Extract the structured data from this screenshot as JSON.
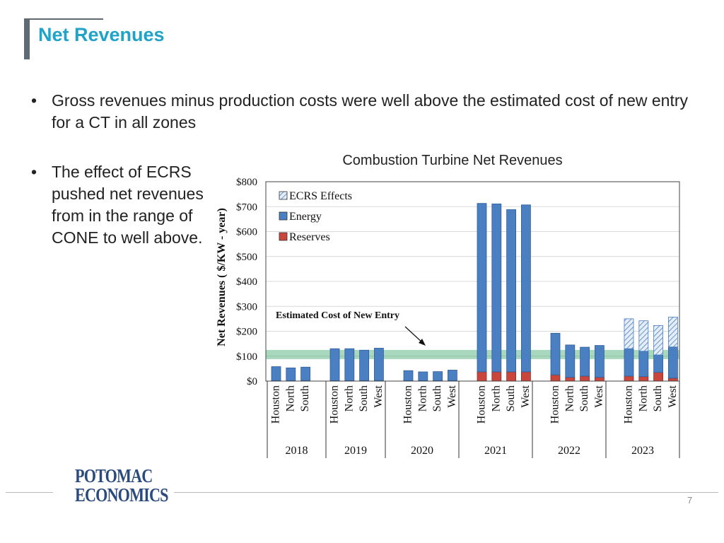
{
  "slide": {
    "title": "Net Revenues",
    "bullets": [
      "Gross revenues minus production costs were well above the estimated cost of new entry for a CT in all zones",
      "The effect of ECRS pushed net revenues from in the range of CONE to well above."
    ],
    "bullet_symbol": "•",
    "logo": [
      "POTOMAC",
      "ECONOMICS"
    ],
    "page_number": "7"
  },
  "chart_data": {
    "type": "bar",
    "stacked": true,
    "title": "Combustion Turbine Net Revenues",
    "ylabel": "Net Revenues ( $/KW - year)",
    "xlabel": "",
    "ylim": [
      0,
      800
    ],
    "yticks": [
      0,
      100,
      200,
      300,
      400,
      500,
      600,
      700,
      800
    ],
    "ytick_labels": [
      "$0",
      "$100",
      "$200",
      "$300",
      "$400",
      "$500",
      "$600",
      "$700",
      "$800"
    ],
    "grid": true,
    "legend_position": "top-left",
    "groups": [
      {
        "year": "2018",
        "zones": [
          "Houston",
          "North",
          "South"
        ]
      },
      {
        "year": "2019",
        "zones": [
          "Houston",
          "North",
          "South",
          "West"
        ]
      },
      {
        "year": "2020",
        "zones": [
          "Houston",
          "North",
          "South",
          "West"
        ]
      },
      {
        "year": "2021",
        "zones": [
          "Houston",
          "North",
          "South",
          "West"
        ]
      },
      {
        "year": "2022",
        "zones": [
          "Houston",
          "North",
          "South",
          "West"
        ]
      },
      {
        "year": "2023",
        "zones": [
          "Houston",
          "North",
          "South",
          "West"
        ]
      }
    ],
    "series": [
      {
        "name": "Reserves",
        "color": "#c9463d",
        "values": [
          2,
          2,
          2,
          2,
          2,
          2,
          2,
          2,
          2,
          2,
          2,
          37,
          37,
          37,
          37,
          25,
          15,
          20,
          15,
          20,
          18,
          35,
          12
        ]
      },
      {
        "name": "Energy",
        "color": "#4a7fc1",
        "values": [
          56,
          51,
          54,
          128,
          128,
          122,
          130,
          40,
          35,
          36,
          42,
          676,
          674,
          651,
          670,
          167,
          130,
          116,
          128,
          110,
          102,
          70,
          125
        ]
      },
      {
        "name": "ECRS Effects",
        "color": "#9dbbe0",
        "values": [
          0,
          0,
          0,
          0,
          0,
          0,
          0,
          0,
          0,
          0,
          0,
          0,
          0,
          0,
          0,
          0,
          0,
          0,
          0,
          120,
          122,
          118,
          120
        ]
      }
    ],
    "legend_order": [
      "ECRS Effects",
      "Energy",
      "Reserves"
    ],
    "reference_band": {
      "label": "Estimated Cost of New Entry",
      "low": 88,
      "high": 125,
      "color": "#3fa86c"
    }
  }
}
